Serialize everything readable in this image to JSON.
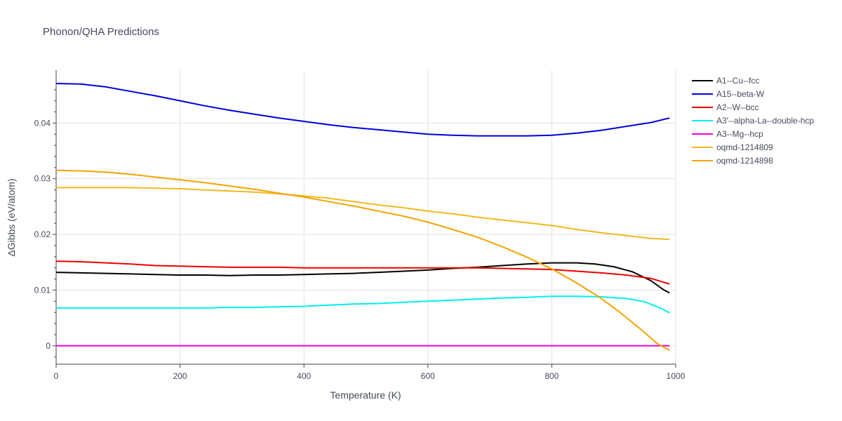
{
  "chart_data": {
    "type": "line",
    "title": "Phonon/QHA Predictions",
    "xlabel": "Temperature (K)",
    "ylabel": "ΔGibbs (eV/atom)",
    "xlim": [
      0,
      1000
    ],
    "ylim": [
      -0.0033,
      0.0495
    ],
    "x_ticks": [
      0,
      200,
      400,
      600,
      800,
      1000
    ],
    "x_tick_labels": [
      "0",
      "200",
      "400",
      "600",
      "800",
      "1000"
    ],
    "y_ticks": [
      0,
      0.01,
      0.02,
      0.03,
      0.04
    ],
    "y_tick_labels": [
      "0",
      "0.01",
      "0.02",
      "0.03",
      "0.04"
    ],
    "grid": true,
    "legend_position": "right",
    "series": [
      {
        "name": "A1--Cu--fcc",
        "color": "#000000",
        "x": [
          0,
          40,
          80,
          120,
          160,
          200,
          240,
          280,
          320,
          360,
          400,
          440,
          480,
          520,
          560,
          600,
          640,
          680,
          720,
          760,
          800,
          840,
          870,
          900,
          930,
          960,
          980,
          990
        ],
        "y": [
          0.0132,
          0.0131,
          0.013,
          0.0129,
          0.0128,
          0.0127,
          0.0127,
          0.0126,
          0.0127,
          0.0127,
          0.0128,
          0.0129,
          0.013,
          0.0132,
          0.0134,
          0.0136,
          0.0139,
          0.0141,
          0.0144,
          0.0147,
          0.0149,
          0.0149,
          0.0147,
          0.0142,
          0.0133,
          0.0117,
          0.0101,
          0.0095
        ]
      },
      {
        "name": "A15--beta-W",
        "color": "#0000dd",
        "x": [
          0,
          40,
          80,
          120,
          160,
          200,
          240,
          280,
          320,
          360,
          400,
          440,
          480,
          520,
          560,
          600,
          640,
          680,
          720,
          760,
          800,
          840,
          880,
          920,
          960,
          990
        ],
        "y": [
          0.0471,
          0.047,
          0.0465,
          0.0457,
          0.0449,
          0.044,
          0.0431,
          0.0423,
          0.0416,
          0.0409,
          0.0403,
          0.0397,
          0.0392,
          0.0388,
          0.0384,
          0.038,
          0.0378,
          0.0377,
          0.0377,
          0.0377,
          0.0378,
          0.0382,
          0.0387,
          0.0394,
          0.0401,
          0.0409
        ]
      },
      {
        "name": "A2--W--bcc",
        "color": "#ee0000",
        "x": [
          0,
          40,
          80,
          120,
          160,
          200,
          240,
          280,
          320,
          360,
          400,
          440,
          480,
          520,
          560,
          600,
          640,
          680,
          720,
          760,
          800,
          840,
          880,
          920,
          960,
          990
        ],
        "y": [
          0.0152,
          0.0151,
          0.0149,
          0.0147,
          0.0144,
          0.0143,
          0.0142,
          0.0141,
          0.0141,
          0.0141,
          0.014,
          0.014,
          0.014,
          0.014,
          0.014,
          0.014,
          0.014,
          0.014,
          0.0139,
          0.0138,
          0.0137,
          0.0134,
          0.0131,
          0.0127,
          0.0121,
          0.0111
        ]
      },
      {
        "name": "A3'--alpha-La--double-hcp",
        "color": "#00f0f0",
        "x": [
          0,
          40,
          80,
          120,
          160,
          200,
          240,
          280,
          320,
          360,
          400,
          440,
          480,
          520,
          560,
          600,
          640,
          680,
          720,
          760,
          800,
          840,
          880,
          920,
          950,
          975,
          990
        ],
        "y": [
          0.0068,
          0.0068,
          0.0068,
          0.0068,
          0.0068,
          0.0068,
          0.0068,
          0.0069,
          0.0069,
          0.007,
          0.0071,
          0.0073,
          0.0075,
          0.0076,
          0.0078,
          0.008,
          0.0082,
          0.0084,
          0.0086,
          0.0087,
          0.0089,
          0.0089,
          0.0088,
          0.0085,
          0.0079,
          0.0068,
          0.0059
        ]
      },
      {
        "name": "A3--Mg--hcp",
        "color": "#ee00ee",
        "x": [
          0,
          200,
          400,
          600,
          800,
          990
        ],
        "y": [
          0,
          0,
          0,
          0,
          0,
          0
        ]
      },
      {
        "name": "oqmd-1214809",
        "color": "#f2b81e",
        "x": [
          0,
          40,
          80,
          120,
          160,
          200,
          240,
          280,
          320,
          360,
          400,
          440,
          480,
          520,
          560,
          600,
          640,
          680,
          720,
          760,
          800,
          840,
          880,
          920,
          960,
          990
        ],
        "y": [
          0.0284,
          0.0284,
          0.0284,
          0.0284,
          0.0283,
          0.0282,
          0.028,
          0.0278,
          0.0276,
          0.0273,
          0.0269,
          0.0265,
          0.0259,
          0.0253,
          0.0248,
          0.0242,
          0.0237,
          0.0231,
          0.0226,
          0.0221,
          0.0216,
          0.0209,
          0.0203,
          0.0198,
          0.0193,
          0.0191
        ]
      },
      {
        "name": "oqmd-1214898",
        "color": "#f5a400",
        "x": [
          0,
          40,
          80,
          120,
          160,
          200,
          240,
          280,
          320,
          360,
          400,
          440,
          480,
          520,
          560,
          600,
          640,
          680,
          720,
          760,
          800,
          840,
          880,
          910,
          940,
          970,
          990
        ],
        "y": [
          0.0315,
          0.0314,
          0.0312,
          0.0308,
          0.0303,
          0.0298,
          0.0293,
          0.0287,
          0.0281,
          0.0274,
          0.0267,
          0.0259,
          0.0251,
          0.0242,
          0.0233,
          0.0222,
          0.0209,
          0.0195,
          0.0178,
          0.0159,
          0.0138,
          0.0113,
          0.0085,
          0.006,
          0.0033,
          0.0004,
          -0.0008
        ]
      }
    ]
  }
}
